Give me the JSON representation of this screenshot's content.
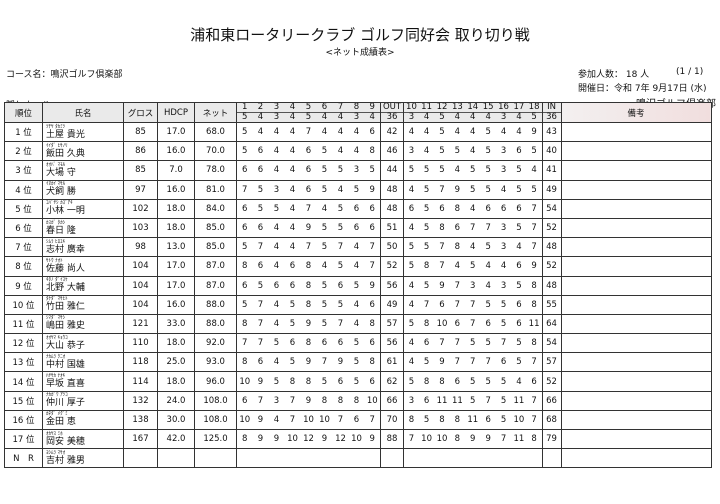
{
  "title": "浦和東ロータリークラブ ゴルフ同好会 取り切り戦",
  "subtitle": "<ネット成績表>",
  "course": "コース名：鳴沢ゴルフ倶楽部",
  "hidden_holes": "隠しホール：",
  "participants": "参加人数： 18 人",
  "pages": "(1 / 1)",
  "date": "開催日：令和 7年 9月17日 (水)",
  "club": "鳴沢ゴルフ倶楽部",
  "headers": {
    "rank": "順位",
    "name": "氏名",
    "gross": "グロス",
    "hdcp": "HDCP",
    "net": "ネット",
    "out": "OUT",
    "out_par": "36",
    "in": "IN",
    "in_par": "36",
    "remarks": "備考"
  },
  "holes_out": [
    "1",
    "2",
    "3",
    "4",
    "5",
    "6",
    "7",
    "8",
    "9"
  ],
  "pars_out": [
    "5",
    "4",
    "3",
    "4",
    "5",
    "4",
    "4",
    "3",
    "4"
  ],
  "holes_in": [
    "10",
    "11",
    "12",
    "13",
    "14",
    "15",
    "16",
    "17",
    "18"
  ],
  "pars_in": [
    "3",
    "4",
    "5",
    "4",
    "4",
    "4",
    "3",
    "4",
    "5"
  ],
  "rows": [
    {
      "rank": "1 位",
      "kana": "ﾂﾁﾔ ﾀｶﾐﾂ",
      "name": "土屋 貴光",
      "gross": "85",
      "hdcp": "17.0",
      "net": "68.0",
      "out": [
        "5",
        "4",
        "4",
        "4",
        "7",
        "4",
        "4",
        "4",
        "6"
      ],
      "out_total": "42",
      "in": [
        "4",
        "4",
        "5",
        "4",
        "4",
        "5",
        "4",
        "4",
        "9"
      ],
      "in_total": "43"
    },
    {
      "rank": "2 位",
      "kana": "ｲｲﾀﾞ ﾋｻﾉﾘ",
      "name": "飯田 久典",
      "gross": "86",
      "hdcp": "16.0",
      "net": "70.0",
      "out": [
        "5",
        "6",
        "4",
        "4",
        "6",
        "5",
        "4",
        "4",
        "8"
      ],
      "out_total": "46",
      "in": [
        "3",
        "4",
        "5",
        "5",
        "4",
        "5",
        "3",
        "6",
        "5"
      ],
      "in_total": "40"
    },
    {
      "rank": "3 位",
      "kana": "ｵｵﾊﾞ ﾏﾓﾙ",
      "name": "大場 守",
      "gross": "85",
      "hdcp": "7.0",
      "net": "78.0",
      "out": [
        "6",
        "6",
        "4",
        "4",
        "6",
        "5",
        "5",
        "3",
        "5"
      ],
      "out_total": "44",
      "in": [
        "5",
        "5",
        "5",
        "4",
        "5",
        "5",
        "3",
        "5",
        "4"
      ],
      "in_total": "41"
    },
    {
      "rank": "4 位",
      "kana": "ｲﾇｶｲ ﾏｻﾙ",
      "name": "犬飼 勝",
      "gross": "97",
      "hdcp": "16.0",
      "net": "81.0",
      "out": [
        "7",
        "5",
        "3",
        "4",
        "6",
        "5",
        "4",
        "5",
        "9"
      ],
      "out_total": "48",
      "in": [
        "4",
        "5",
        "7",
        "9",
        "5",
        "5",
        "4",
        "5",
        "5"
      ],
      "in_total": "49"
    },
    {
      "rank": "5 位",
      "kana": "ｺﾊﾞﾔｼ ｶｽﾞｱｷ",
      "name": "小林 一明",
      "gross": "102",
      "hdcp": "18.0",
      "net": "84.0",
      "out": [
        "6",
        "5",
        "5",
        "4",
        "7",
        "4",
        "5",
        "6",
        "6"
      ],
      "out_total": "48",
      "in": [
        "6",
        "5",
        "6",
        "8",
        "4",
        "6",
        "6",
        "6",
        "7"
      ],
      "in_total": "54"
    },
    {
      "rank": "6 位",
      "kana": "ｶｽｶﾞ ﾀｶｼ",
      "name": "春日 隆",
      "gross": "103",
      "hdcp": "18.0",
      "net": "85.0",
      "out": [
        "6",
        "6",
        "4",
        "4",
        "9",
        "5",
        "5",
        "6",
        "6"
      ],
      "out_total": "51",
      "in": [
        "4",
        "5",
        "8",
        "6",
        "7",
        "7",
        "3",
        "5",
        "7"
      ],
      "in_total": "52"
    },
    {
      "rank": "7 位",
      "kana": "ｼﾑﾗ ﾋﾛﾕｷ",
      "name": "志村 廣幸",
      "gross": "98",
      "hdcp": "13.0",
      "net": "85.0",
      "out": [
        "5",
        "7",
        "4",
        "4",
        "7",
        "5",
        "7",
        "4",
        "7"
      ],
      "out_total": "50",
      "in": [
        "5",
        "5",
        "7",
        "8",
        "4",
        "5",
        "3",
        "4",
        "7"
      ],
      "in_total": "48"
    },
    {
      "rank": "8 位",
      "kana": "ｻﾄｳ ﾅｵﾄ",
      "name": "佐藤 尚人",
      "gross": "104",
      "hdcp": "17.0",
      "net": "87.0",
      "out": [
        "8",
        "6",
        "4",
        "6",
        "8",
        "4",
        "5",
        "4",
        "7"
      ],
      "out_total": "52",
      "in": [
        "5",
        "8",
        "7",
        "4",
        "5",
        "4",
        "4",
        "6",
        "9"
      ],
      "in_total": "52"
    },
    {
      "rank": "9 位",
      "kana": "ｷﾀﾉ ﾀﾞｲｽｹ",
      "name": "北野 大輔",
      "gross": "104",
      "hdcp": "17.0",
      "net": "87.0",
      "out": [
        "6",
        "5",
        "6",
        "6",
        "8",
        "5",
        "6",
        "5",
        "9"
      ],
      "out_total": "56",
      "in": [
        "4",
        "5",
        "9",
        "7",
        "3",
        "4",
        "3",
        "5",
        "8"
      ],
      "in_total": "48"
    },
    {
      "rank": "10 位",
      "kana": "ﾀｹﾀﾞ ﾏｻﾋﾄ",
      "name": "竹田 雅仁",
      "gross": "104",
      "hdcp": "16.0",
      "net": "88.0",
      "out": [
        "5",
        "7",
        "4",
        "5",
        "8",
        "5",
        "5",
        "4",
        "6"
      ],
      "out_total": "49",
      "in": [
        "4",
        "7",
        "6",
        "7",
        "7",
        "5",
        "5",
        "6",
        "8"
      ],
      "in_total": "55"
    },
    {
      "rank": "11 位",
      "kana": "ｼﾏﾀﾞ ﾏｻｼ",
      "name": "嶋田 雅史",
      "gross": "121",
      "hdcp": "33.0",
      "net": "88.0",
      "out": [
        "8",
        "7",
        "4",
        "5",
        "9",
        "5",
        "7",
        "4",
        "8"
      ],
      "out_total": "57",
      "in": [
        "5",
        "8",
        "10",
        "6",
        "7",
        "6",
        "5",
        "6",
        "11"
      ],
      "in_total": "64"
    },
    {
      "rank": "12 位",
      "kana": "ｵｵﾔﾏ ｷｮｳｺ",
      "name": "大山 恭子",
      "gross": "110",
      "hdcp": "18.0",
      "net": "92.0",
      "out": [
        "7",
        "7",
        "5",
        "6",
        "8",
        "6",
        "6",
        "5",
        "6"
      ],
      "out_total": "56",
      "in": [
        "4",
        "6",
        "7",
        "7",
        "5",
        "5",
        "7",
        "5",
        "8"
      ],
      "in_total": "54"
    },
    {
      "rank": "13 位",
      "kana": "ﾅｶﾑﾗ ｸﾆｵ",
      "name": "中村 国雄",
      "gross": "118",
      "hdcp": "25.0",
      "net": "93.0",
      "out": [
        "8",
        "6",
        "4",
        "5",
        "9",
        "7",
        "9",
        "5",
        "8"
      ],
      "out_total": "61",
      "in": [
        "4",
        "5",
        "9",
        "7",
        "7",
        "7",
        "6",
        "5",
        "7"
      ],
      "in_total": "57"
    },
    {
      "rank": "14 位",
      "kana": "ﾊﾔｻｶ ﾅｵｷ",
      "name": "早坂 直喜",
      "gross": "114",
      "hdcp": "18.0",
      "net": "96.0",
      "out": [
        "10",
        "9",
        "5",
        "8",
        "8",
        "5",
        "6",
        "5",
        "6"
      ],
      "out_total": "62",
      "in": [
        "5",
        "8",
        "8",
        "6",
        "5",
        "5",
        "5",
        "4",
        "6"
      ],
      "in_total": "52"
    },
    {
      "rank": "15 位",
      "kana": "ﾅｶｶﾞﾜ ｱﾂｺ",
      "name": "仲川 厚子",
      "gross": "132",
      "hdcp": "24.0",
      "net": "108.0",
      "out": [
        "6",
        "7",
        "3",
        "7",
        "9",
        "8",
        "8",
        "8",
        "10"
      ],
      "out_total": "66",
      "in": [
        "3",
        "6",
        "11",
        "11",
        "5",
        "7",
        "5",
        "11",
        "7"
      ],
      "in_total": "66"
    },
    {
      "rank": "16 位",
      "kana": "ｶﾈﾀﾞ ﾒｸﾞﾐ",
      "name": "金田 恵",
      "gross": "138",
      "hdcp": "30.0",
      "net": "108.0",
      "out": [
        "10",
        "9",
        "4",
        "7",
        "10",
        "10",
        "7",
        "6",
        "7"
      ],
      "out_total": "70",
      "in": [
        "8",
        "5",
        "8",
        "8",
        "11",
        "6",
        "5",
        "10",
        "7"
      ],
      "in_total": "68"
    },
    {
      "rank": "17 位",
      "kana": "ｵｶﾔｽ ﾐﾎ",
      "name": "岡安 美穂",
      "gross": "167",
      "hdcp": "42.0",
      "net": "125.0",
      "out": [
        "8",
        "9",
        "9",
        "10",
        "12",
        "9",
        "12",
        "10",
        "9"
      ],
      "out_total": "88",
      "in": [
        "7",
        "10",
        "10",
        "8",
        "9",
        "9",
        "7",
        "11",
        "8"
      ],
      "in_total": "79"
    },
    {
      "rank": "N　R",
      "kana": "ﾖｼﾑﾗ ﾏｻｵ",
      "name": "吉村 雅男",
      "gross": "",
      "hdcp": "",
      "net": "",
      "out": [
        "",
        "",
        "",
        "",
        "",
        "",
        "",
        "",
        ""
      ],
      "out_total": "",
      "in": [
        "",
        "",
        "",
        "",
        "",
        "",
        "",
        "",
        ""
      ],
      "in_total": ""
    }
  ]
}
